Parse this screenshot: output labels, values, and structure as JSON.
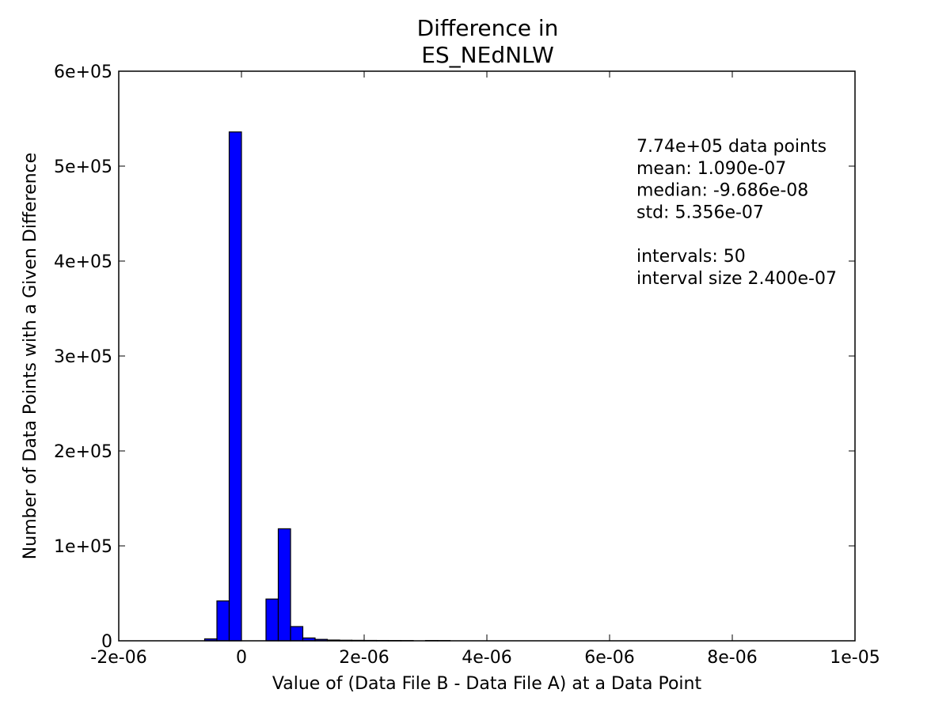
{
  "chart_data": {
    "type": "bar",
    "title_lines": [
      "Difference in",
      "ES_NEdNLW"
    ],
    "xlabel": "Value of (Data File B - Data File A) at a Data Point",
    "ylabel": "Number of Data Points with a Given Difference",
    "xlim": [
      -2e-06,
      1e-05
    ],
    "ylim": [
      0,
      600000
    ],
    "x_ticks": [
      -2e-06,
      0,
      2e-06,
      4e-06,
      6e-06,
      8e-06,
      1e-05
    ],
    "x_tick_labels": [
      "-2e-06",
      "0",
      "2e-06",
      "4e-06",
      "6e-06",
      "8e-06",
      "1e-05"
    ],
    "y_ticks": [
      0,
      100000,
      200000,
      300000,
      400000,
      500000,
      600000
    ],
    "y_tick_labels": [
      "0",
      "1e+05",
      "2e+05",
      "3e+05",
      "4e+05",
      "5e+05",
      "6e+05"
    ],
    "grid": false,
    "bar_color": "#0000ff",
    "edge_color": "#000000",
    "bins": [
      {
        "x0": -6e-07,
        "x1": -4e-07,
        "count": 2000
      },
      {
        "x0": -4e-07,
        "x1": -2e-07,
        "count": 42000
      },
      {
        "x0": -2e-07,
        "x1": 0.0,
        "count": 536000
      },
      {
        "x0": 4e-07,
        "x1": 6e-07,
        "count": 44000
      },
      {
        "x0": 6e-07,
        "x1": 8e-07,
        "count": 118000
      },
      {
        "x0": 8e-07,
        "x1": 1e-06,
        "count": 15000
      },
      {
        "x0": 1e-06,
        "x1": 1.2e-06,
        "count": 3000
      },
      {
        "x0": 1.2e-06,
        "x1": 1.4e-06,
        "count": 1500
      },
      {
        "x0": 1.4e-06,
        "x1": 1.6e-06,
        "count": 800
      },
      {
        "x0": 1.6e-06,
        "x1": 1.8e-06,
        "count": 600
      },
      {
        "x0": 1.8e-06,
        "x1": 2e-06,
        "count": 500
      },
      {
        "x0": 2e-06,
        "x1": 2.2e-06,
        "count": 400
      },
      {
        "x0": 2.2e-06,
        "x1": 2.4e-06,
        "count": 350
      },
      {
        "x0": 2.4e-06,
        "x1": 2.6e-06,
        "count": 300
      },
      {
        "x0": 2.6e-06,
        "x1": 2.8e-06,
        "count": 250
      },
      {
        "x0": 3e-06,
        "x1": 3.2e-06,
        "count": 300
      },
      {
        "x0": 3.2e-06,
        "x1": 3.4e-06,
        "count": 250
      }
    ],
    "annotation_lines": [
      "7.74e+05 data points",
      "mean: 1.090e-07",
      "median: -9.686e-08",
      "std: 5.356e-07",
      "",
      "intervals: 50",
      "interval size 2.400e-07"
    ]
  }
}
